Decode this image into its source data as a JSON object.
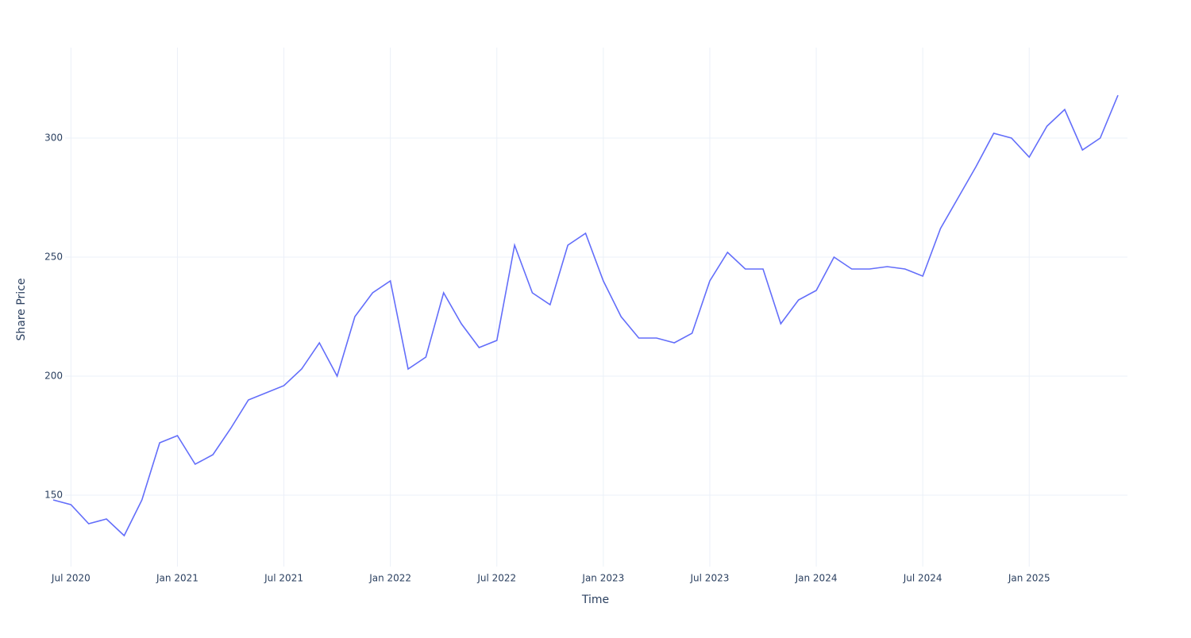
{
  "chart_data": {
    "type": "line",
    "x_label": "Time",
    "y_label": "Share Price",
    "x": [
      "2020-06",
      "2020-07",
      "2020-08",
      "2020-09",
      "2020-10",
      "2020-11",
      "2020-12",
      "2021-01",
      "2021-02",
      "2021-03",
      "2021-04",
      "2021-05",
      "2021-06",
      "2021-07",
      "2021-08",
      "2021-09",
      "2021-10",
      "2021-11",
      "2021-12",
      "2022-01",
      "2022-02",
      "2022-03",
      "2022-04",
      "2022-05",
      "2022-06",
      "2022-07",
      "2022-08",
      "2022-09",
      "2022-10",
      "2022-11",
      "2022-12",
      "2023-01",
      "2023-02",
      "2023-03",
      "2023-04",
      "2023-05",
      "2023-06",
      "2023-07",
      "2023-08",
      "2023-09",
      "2023-10",
      "2023-11",
      "2023-12",
      "2024-01",
      "2024-02",
      "2024-03",
      "2024-04",
      "2024-05",
      "2024-06",
      "2024-07",
      "2024-08",
      "2024-09",
      "2024-10",
      "2024-11",
      "2024-12",
      "2025-01",
      "2025-02",
      "2025-03",
      "2025-04",
      "2025-05",
      "2025-06"
    ],
    "series": [
      {
        "color": "#636efa",
        "values": [
          148,
          146,
          138,
          140,
          133,
          148,
          172,
          175,
          163,
          167,
          178,
          190,
          193,
          196,
          203,
          214,
          200,
          225,
          235,
          240,
          203,
          208,
          235,
          222,
          212,
          215,
          255,
          235,
          230,
          255,
          260,
          240,
          225,
          216,
          216,
          214,
          218,
          240,
          252,
          245,
          245,
          222,
          232,
          236,
          250,
          245,
          245,
          246,
          245,
          242,
          262,
          275,
          288,
          302,
          300,
          292,
          305,
          312,
          295,
          300,
          318
        ]
      }
    ],
    "xlim": [
      "2020-06",
      "2025-06"
    ],
    "xticks": [
      {
        "value": "2020-07",
        "label": "Jul 2020"
      },
      {
        "value": "2021-01",
        "label": "Jan 2021"
      },
      {
        "value": "2021-07",
        "label": "Jul 2021"
      },
      {
        "value": "2022-01",
        "label": "Jan 2022"
      },
      {
        "value": "2022-07",
        "label": "Jul 2022"
      },
      {
        "value": "2023-01",
        "label": "Jan 2023"
      },
      {
        "value": "2023-07",
        "label": "Jul 2023"
      },
      {
        "value": "2024-01",
        "label": "Jan 2024"
      },
      {
        "value": "2024-07",
        "label": "Jul 2024"
      },
      {
        "value": "2025-01",
        "label": "Jan 2025"
      }
    ],
    "ylim": [
      120,
      338
    ],
    "yticks": [
      150,
      200,
      250,
      300
    ],
    "grid": true
  }
}
